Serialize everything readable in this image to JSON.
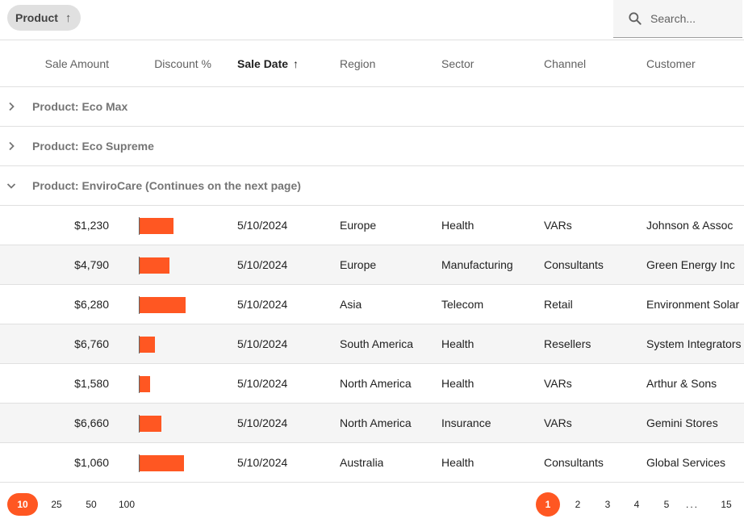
{
  "group_chip": {
    "label": "Product",
    "arrow": "↑"
  },
  "search": {
    "placeholder": "Search..."
  },
  "columns": {
    "sale_amount": "Sale Amount",
    "discount": "Discount %",
    "sale_date": "Sale Date",
    "sale_date_arrow": "↑",
    "region": "Region",
    "sector": "Sector",
    "channel": "Channel",
    "customer": "Customer"
  },
  "groups": [
    {
      "label": "Product: Eco Max",
      "expanded": false
    },
    {
      "label": "Product: Eco Supreme",
      "expanded": false
    },
    {
      "label": "Product: EnviroCare (Continues on the next page)",
      "expanded": true
    }
  ],
  "rows": [
    {
      "amount": "$1,230",
      "discount": 0.42,
      "date": "5/10/2024",
      "region": "Europe",
      "sector": "Health",
      "channel": "VARs",
      "customer": "Johnson & Assoc"
    },
    {
      "amount": "$4,790",
      "discount": 0.37,
      "date": "5/10/2024",
      "region": "Europe",
      "sector": "Manufacturing",
      "channel": "Consultants",
      "customer": "Green Energy Inc"
    },
    {
      "amount": "$6,280",
      "discount": 0.58,
      "date": "5/10/2024",
      "region": "Asia",
      "sector": "Telecom",
      "channel": "Retail",
      "customer": "Environment Solar"
    },
    {
      "amount": "$6,760",
      "discount": 0.19,
      "date": "5/10/2024",
      "region": "South America",
      "sector": "Health",
      "channel": "Resellers",
      "customer": "System Integrators"
    },
    {
      "amount": "$1,580",
      "discount": 0.13,
      "date": "5/10/2024",
      "region": "North America",
      "sector": "Health",
      "channel": "VARs",
      "customer": "Arthur & Sons"
    },
    {
      "amount": "$6,660",
      "discount": 0.27,
      "date": "5/10/2024",
      "region": "North America",
      "sector": "Insurance",
      "channel": "VARs",
      "customer": "Gemini Stores"
    },
    {
      "amount": "$1,060",
      "discount": 0.56,
      "date": "5/10/2024",
      "region": "Australia",
      "sector": "Health",
      "channel": "Consultants",
      "customer": "Global Services"
    }
  ],
  "page_sizes": [
    "10",
    "25",
    "50",
    "100"
  ],
  "active_page_size": "10",
  "pages": [
    "1",
    "2",
    "3",
    "4",
    "5"
  ],
  "ellipsis": "...",
  "last_page": "15",
  "active_page": "1",
  "colors": {
    "accent": "#ff5722",
    "alt_row": "#f5f5f5",
    "chip": "#e0e0e0"
  },
  "icons": {
    "search": "search-icon",
    "collapsed": "chevron-right-icon",
    "expanded": "chevron-down-icon"
  }
}
